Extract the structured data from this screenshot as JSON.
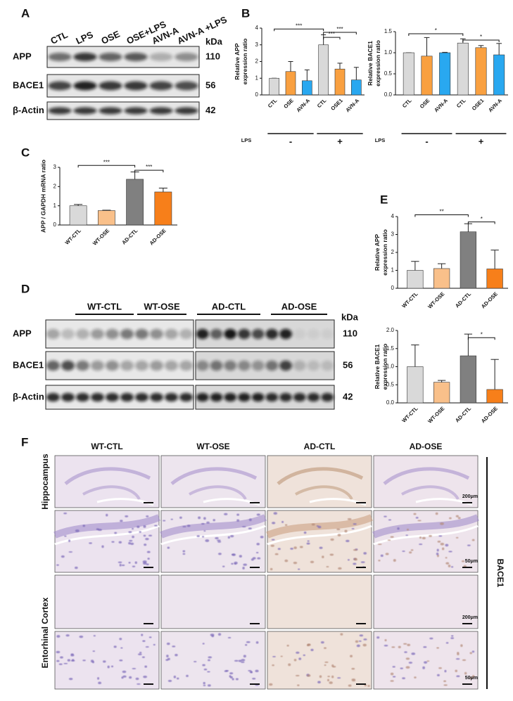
{
  "panel_labels": [
    "A",
    "B",
    "C",
    "D",
    "E",
    "F"
  ],
  "blot_a": {
    "lanes": [
      "CTL",
      "LPS",
      "OSE",
      "OSE+LPS",
      "AVN-A",
      "AVN-A +LPS"
    ],
    "rows": [
      "APP",
      "BACE1",
      "β-Actin"
    ],
    "unit": "kDa",
    "sizes": [
      110,
      56,
      42
    ]
  },
  "blot_d": {
    "groups": [
      "WT-CTL",
      "WT-OSE",
      "AD-CTL",
      "AD-OSE"
    ],
    "rows": [
      "APP",
      "BACE1",
      "β-Actin"
    ],
    "unit": "kDa",
    "sizes": [
      110,
      56,
      42
    ]
  },
  "chart_data": [
    {
      "type": "bar",
      "y_label": [
        "Relative APP",
        "expression ratio"
      ],
      "categories": [
        "CTL",
        "OSE",
        "AVN-A",
        "CTL",
        "OSE1",
        "AVN-A"
      ],
      "values": [
        1.0,
        1.4,
        0.85,
        3.0,
        1.55,
        0.9
      ],
      "errors": [
        0,
        0.6,
        0.65,
        0.6,
        0.35,
        0.75
      ],
      "colors": [
        "#d9d9d9",
        "#f9a040",
        "#29a8f0",
        "#d9d9d9",
        "#f9a040",
        "#29a8f0"
      ],
      "ylim": [
        0,
        4
      ],
      "yticks": [
        0,
        1,
        2,
        3,
        4
      ],
      "group_axis": {
        "label": "LPS",
        "groups": [
          "-",
          "+"
        ]
      },
      "annotations": [
        "***",
        "***",
        "***"
      ]
    },
    {
      "type": "bar",
      "y_label": [
        "Relative BACE1",
        "expression ratio"
      ],
      "categories": [
        "CTL",
        "OSE",
        "AVN-A",
        "CTL",
        "OSE1",
        "AVN-A"
      ],
      "values": [
        1.0,
        0.92,
        1.0,
        1.23,
        1.12,
        0.95
      ],
      "errors": [
        0,
        0.44,
        0.01,
        0.1,
        0.05,
        0.27
      ],
      "colors": [
        "#d9d9d9",
        "#f9a040",
        "#29a8f0",
        "#d9d9d9",
        "#f9a040",
        "#29a8f0"
      ],
      "ylim": [
        0,
        1.5
      ],
      "yticks": [
        {
          "value": 0,
          "label": "0.0"
        },
        0.5,
        {
          "value": 1,
          "label": "1.0"
        },
        1.5
      ],
      "group_axis": {
        "label": "LPS",
        "groups": [
          "-",
          "+"
        ]
      },
      "annotations": [
        "*",
        "*"
      ]
    },
    {
      "type": "bar",
      "y_label": [
        "APP / GAPDH mRNA ratio"
      ],
      "categories": [
        "WT-CTL",
        "WT-OSE",
        "AD-CTL",
        "AD-OSE"
      ],
      "values": [
        1.0,
        0.75,
        2.38,
        1.72
      ],
      "errors": [
        0.07,
        0.02,
        0.38,
        0.2
      ],
      "colors": [
        "#d9d9d9",
        "#f9c08a",
        "#808080",
        "#f77f1a"
      ],
      "ylim": [
        0,
        3
      ],
      "yticks": [
        0,
        1,
        2,
        3
      ],
      "annotations": [
        "***",
        "***"
      ]
    },
    {
      "type": "bar",
      "y_label": [
        "Relative APP",
        "expression ratio"
      ],
      "categories": [
        "WT-CTL",
        "WT-OSE",
        "AD-CTL",
        "AD-OSE"
      ],
      "values": [
        1.0,
        1.1,
        3.15,
        1.08
      ],
      "errors": [
        0.5,
        0.27,
        0.45,
        1.05
      ],
      "colors": [
        "#d9d9d9",
        "#f9c08a",
        "#808080",
        "#f77f1a"
      ],
      "ylim": [
        0,
        4
      ],
      "yticks": [
        0,
        1,
        2,
        3,
        4
      ],
      "annotations": [
        "**",
        "*"
      ]
    },
    {
      "type": "bar",
      "y_label": [
        "Relative BACE1",
        "expression ratio"
      ],
      "categories": [
        "WT-CTL",
        "WT-OSE",
        "AD-CTL",
        "AD-OSE"
      ],
      "values": [
        1.0,
        0.57,
        1.3,
        0.37
      ],
      "errors": [
        0.6,
        0.05,
        0.6,
        0.83
      ],
      "colors": [
        "#d9d9d9",
        "#f9c08a",
        "#808080",
        "#f77f1a"
      ],
      "ylim": [
        0,
        2
      ],
      "yticks": [
        {
          "value": 0,
          "label": "0.0"
        },
        0.5,
        {
          "value": 1,
          "label": "1.0"
        },
        1.5,
        {
          "value": 2,
          "label": "2.0"
        }
      ],
      "annotations": [
        "*"
      ]
    }
  ],
  "histology": {
    "columns": [
      "WT-CTL",
      "WT-OSE",
      "AD-CTL",
      "AD-OSE"
    ],
    "rows": [
      "Hippocampus",
      "Entorhinal Cortex"
    ],
    "scale_bars": [
      "200μm",
      "50μm",
      "200μm",
      "50μm"
    ],
    "stain": "BACE1"
  }
}
